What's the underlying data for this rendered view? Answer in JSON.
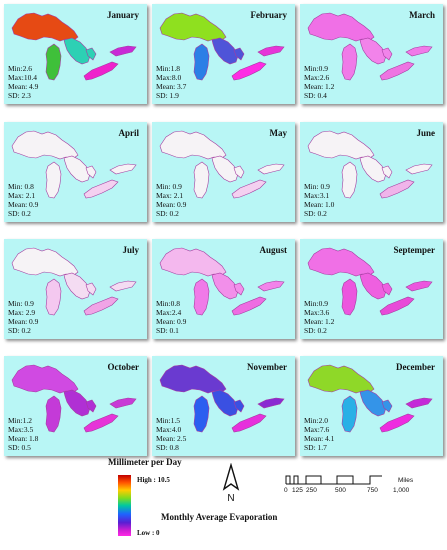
{
  "months": [
    {
      "name": "January",
      "min": "Min:2.6",
      "max": "Max:10.4",
      "mean": "Mean: 4.9",
      "sd": "SD: 2.3",
      "colors": {
        "superior": "#e64a14",
        "michigan": "#3fc03a",
        "huron": "#2dd0b4",
        "erie": "#ee22cc",
        "ontario": "#c82ad6"
      }
    },
    {
      "name": "February",
      "min": "Min:1.8",
      "max": "Max:8.0",
      "mean": "Mean: 3.7",
      "sd": "SD: 1.9",
      "colors": {
        "superior": "#8fe01f",
        "michigan": "#2b7fe6",
        "huron": "#4f54d8",
        "erie": "#ff2ce4",
        "ontario": "#e635d8"
      }
    },
    {
      "name": "March",
      "min": "Min:0.9",
      "max": "Max:2.6",
      "mean": "Mean: 1.2",
      "sd": "SD: 0.4",
      "colors": {
        "superior": "#f070e6",
        "michigan": "#f07ae8",
        "huron": "#f283ea",
        "erie": "#ee74e2",
        "ontario": "#f07ae8"
      }
    },
    {
      "name": "April",
      "min": "Min: 0.8",
      "max": "Max: 2.1",
      "mean": "Mean:  0.9",
      "sd": "SD:  0.2",
      "colors": {
        "superior": "#f6f3f6",
        "michigan": "#f6f3f6",
        "huron": "#f6f3f6",
        "erie": "#f4d0f0",
        "ontario": "#f6f3f6"
      }
    },
    {
      "name": "May",
      "min": "Min:  0.9",
      "max": "Max:  2.1",
      "mean": "Mean:  0.9",
      "sd": "SD:  0.2",
      "colors": {
        "superior": "#f6f3f6",
        "michigan": "#f6f3f6",
        "huron": "#f6f3f6",
        "erie": "#f4d0f0",
        "ontario": "#f6f3f6"
      }
    },
    {
      "name": "June",
      "min": "Min: 0.9",
      "max": "Max:3.1",
      "mean": "Mean:  1.0",
      "sd": "SD: 0.2",
      "colors": {
        "superior": "#f6f3f6",
        "michigan": "#f6f3f6",
        "huron": "#f6f3f6",
        "erie": "#f0b4ea",
        "ontario": "#f6f3f6"
      }
    },
    {
      "name": "July",
      "min": "Min:  0.9",
      "max": "Max:  2.9",
      "mean": "Mean:  0.9",
      "sd": "SD:  0.2",
      "colors": {
        "superior": "#f6f3f6",
        "michigan": "#f4c8f0",
        "huron": "#f4dcf2",
        "erie": "#f0a4e6",
        "ontario": "#f4dcf2"
      }
    },
    {
      "name": "August",
      "min": "Min:0.8",
      "max": "Max:2.4",
      "mean": "Mean: 0.9",
      "sd": "SD: 0.1",
      "colors": {
        "superior": "#f4b8ee",
        "michigan": "#f07ae8",
        "huron": "#f28fea",
        "erie": "#ee6ce2",
        "ontario": "#f283ea"
      }
    },
    {
      "name": "Septemper",
      "min": "Min:0.9",
      "max": "Max:3.6",
      "mean": "Mean: 1.2",
      "sd": "SD: 0.2",
      "colors": {
        "superior": "#f070e6",
        "michigan": "#ec56de",
        "huron": "#ee60e0",
        "erie": "#e84ad8",
        "ontario": "#ec56de"
      }
    },
    {
      "name": "October",
      "min": "Min:1.2",
      "max": "Max:3.5",
      "mean": "Mean: 1.8",
      "sd": "SD: 0.5",
      "colors": {
        "superior": "#d04ae2",
        "michigan": "#c43ad8",
        "huron": "#b030d4",
        "erie": "#e634d8",
        "ontario": "#c83ad6"
      }
    },
    {
      "name": "November",
      "min": "Min:1.5",
      "max": "Max:4.0",
      "mean": "Mean: 2.5",
      "sd": "SD: 0.8",
      "colors": {
        "superior": "#6a3ad0",
        "michigan": "#2b5ef0",
        "huron": "#3a50e2",
        "erie": "#e630dc",
        "ontario": "#8a2ad2"
      }
    },
    {
      "name": "December",
      "min": "Min:2.0",
      "max": "Max:7.6",
      "mean": "Mean: 4.1",
      "sd": "SD: 1.7",
      "colors": {
        "superior": "#8fd828",
        "michigan": "#28b0e6",
        "huron": "#3494e8",
        "erie": "#ee2ce0",
        "ontario": "#c42ad8"
      }
    }
  ],
  "legend": {
    "title": "Millimeter per Day",
    "high": "High : 10.5",
    "low": "Low : 0"
  },
  "north_label": "N",
  "scale": {
    "ticks": [
      "0",
      "125",
      "250",
      "500",
      "750",
      "1,000"
    ],
    "unit": "Miles"
  },
  "map_title": "Monthly Average Evaporation"
}
